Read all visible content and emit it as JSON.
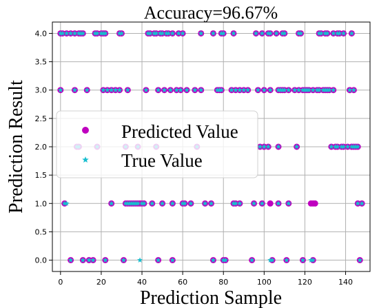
{
  "chart_data": {
    "type": "scatter",
    "title": "Accuracy=96.67%",
    "xlabel": "Prediction Sample",
    "ylabel": "Prediction Result",
    "xlim": [
      -4,
      152
    ],
    "ylim": [
      -0.2,
      4.2
    ],
    "xticks": [
      "0",
      "20",
      "40",
      "60",
      "80",
      "100",
      "120",
      "140"
    ],
    "xtick_values": [
      0,
      20,
      40,
      60,
      80,
      100,
      120,
      140
    ],
    "yticks": [
      "0.0",
      "0.5",
      "1.0",
      "1.5",
      "2.0",
      "2.5",
      "3.0",
      "3.5",
      "4.0"
    ],
    "ytick_values": [
      0,
      0.5,
      1,
      1.5,
      2,
      2.5,
      3,
      3.5,
      4
    ],
    "grid": true,
    "legend_position": "center-left",
    "colors": {
      "predicted": "#bf00bf",
      "true": "#17becf",
      "grid": "#b0b0b0"
    },
    "series": [
      {
        "name": "Predicted Value",
        "marker": "circle",
        "points": [
          [
            0,
            4
          ],
          [
            1,
            4
          ],
          [
            3,
            4
          ],
          [
            5,
            4
          ],
          [
            7,
            4
          ],
          [
            9,
            4
          ],
          [
            10,
            4
          ],
          [
            11,
            4
          ],
          [
            17,
            4
          ],
          [
            18,
            4
          ],
          [
            20,
            4
          ],
          [
            21,
            4
          ],
          [
            22,
            4
          ],
          [
            29,
            4
          ],
          [
            30,
            4
          ],
          [
            43,
            4
          ],
          [
            44,
            4
          ],
          [
            46,
            4
          ],
          [
            47,
            4
          ],
          [
            49,
            4
          ],
          [
            50,
            4
          ],
          [
            52,
            4
          ],
          [
            53,
            4
          ],
          [
            55,
            4
          ],
          [
            58,
            4
          ],
          [
            60,
            4
          ],
          [
            69,
            4
          ],
          [
            75,
            4
          ],
          [
            79,
            4
          ],
          [
            80,
            4
          ],
          [
            85,
            4
          ],
          [
            96,
            4
          ],
          [
            99,
            4
          ],
          [
            102,
            4
          ],
          [
            103,
            4
          ],
          [
            106,
            4
          ],
          [
            109,
            4
          ],
          [
            110,
            4
          ],
          [
            117,
            4
          ],
          [
            118,
            4
          ],
          [
            127,
            4
          ],
          [
            128,
            4
          ],
          [
            130,
            4
          ],
          [
            131,
            4
          ],
          [
            134,
            4
          ],
          [
            136,
            4
          ],
          [
            137,
            4
          ],
          [
            139,
            4
          ],
          [
            143,
            4
          ],
          [
            0,
            3
          ],
          [
            7,
            3
          ],
          [
            13,
            3
          ],
          [
            21,
            3
          ],
          [
            23,
            3
          ],
          [
            25,
            3
          ],
          [
            27,
            3
          ],
          [
            29,
            3
          ],
          [
            33,
            3
          ],
          [
            42,
            3
          ],
          [
            48,
            3
          ],
          [
            51,
            3
          ],
          [
            54,
            3
          ],
          [
            57,
            3
          ],
          [
            59,
            3
          ],
          [
            62,
            3
          ],
          [
            66,
            3
          ],
          [
            69,
            3
          ],
          [
            77,
            3
          ],
          [
            78,
            3
          ],
          [
            79,
            3
          ],
          [
            84,
            3
          ],
          [
            86,
            3
          ],
          [
            88,
            3
          ],
          [
            90,
            3
          ],
          [
            92,
            3
          ],
          [
            97,
            3
          ],
          [
            100,
            3
          ],
          [
            103,
            3
          ],
          [
            107,
            3
          ],
          [
            108,
            3
          ],
          [
            109,
            3
          ],
          [
            110,
            3
          ],
          [
            112,
            3
          ],
          [
            115,
            3
          ],
          [
            117,
            3
          ],
          [
            119,
            3
          ],
          [
            120,
            3
          ],
          [
            121,
            3
          ],
          [
            122,
            3
          ],
          [
            124,
            3
          ],
          [
            126,
            3
          ],
          [
            127,
            3
          ],
          [
            129,
            3
          ],
          [
            130,
            3
          ],
          [
            131,
            3
          ],
          [
            132,
            3
          ],
          [
            134,
            3
          ],
          [
            142,
            3
          ],
          [
            144,
            3
          ],
          [
            8,
            2
          ],
          [
            9,
            2
          ],
          [
            18,
            2
          ],
          [
            32,
            2
          ],
          [
            38,
            2
          ],
          [
            47,
            2
          ],
          [
            67,
            2
          ],
          [
            98,
            2
          ],
          [
            100,
            2
          ],
          [
            102,
            2
          ],
          [
            107,
            2
          ],
          [
            116,
            2
          ],
          [
            133,
            2
          ],
          [
            135,
            2
          ],
          [
            136,
            2
          ],
          [
            138,
            2
          ],
          [
            139,
            2
          ],
          [
            141,
            2
          ],
          [
            143,
            2
          ],
          [
            144,
            2
          ],
          [
            145,
            2
          ],
          [
            146,
            2
          ],
          [
            2,
            1
          ],
          [
            25,
            1
          ],
          [
            32,
            1
          ],
          [
            33,
            1
          ],
          [
            34,
            1
          ],
          [
            35,
            1
          ],
          [
            36,
            1
          ],
          [
            37,
            1
          ],
          [
            38,
            1
          ],
          [
            39,
            1
          ],
          [
            40,
            1
          ],
          [
            41,
            1
          ],
          [
            45,
            1
          ],
          [
            50,
            1
          ],
          [
            55,
            1
          ],
          [
            60,
            1
          ],
          [
            61,
            1
          ],
          [
            64,
            1
          ],
          [
            71,
            1
          ],
          [
            74,
            1
          ],
          [
            85,
            1
          ],
          [
            86,
            1
          ],
          [
            88,
            1
          ],
          [
            95,
            1
          ],
          [
            99,
            1
          ],
          [
            103,
            1
          ],
          [
            107,
            1
          ],
          [
            112,
            1
          ],
          [
            123,
            1
          ],
          [
            124,
            1
          ],
          [
            125,
            1
          ],
          [
            146,
            1
          ],
          [
            148,
            1
          ],
          [
            5,
            0
          ],
          [
            11,
            0
          ],
          [
            14,
            0
          ],
          [
            16,
            0
          ],
          [
            22,
            0
          ],
          [
            31,
            0
          ],
          [
            48,
            0
          ],
          [
            55,
            0
          ],
          [
            75,
            0
          ],
          [
            80,
            0
          ],
          [
            81,
            0
          ],
          [
            94,
            0
          ],
          [
            104,
            0
          ],
          [
            111,
            0
          ],
          [
            119,
            0
          ],
          [
            124,
            0
          ],
          [
            147,
            0
          ]
        ]
      },
      {
        "name": "True Value",
        "marker": "star",
        "points": [
          [
            0,
            4
          ],
          [
            1,
            4
          ],
          [
            3,
            4
          ],
          [
            5,
            4
          ],
          [
            7,
            4
          ],
          [
            9,
            4
          ],
          [
            10,
            4
          ],
          [
            11,
            4
          ],
          [
            17,
            4
          ],
          [
            18,
            4
          ],
          [
            20,
            4
          ],
          [
            21,
            4
          ],
          [
            22,
            4
          ],
          [
            29,
            4
          ],
          [
            30,
            4
          ],
          [
            43,
            4
          ],
          [
            44,
            4
          ],
          [
            46,
            4
          ],
          [
            47,
            4
          ],
          [
            49,
            4
          ],
          [
            50,
            4
          ],
          [
            52,
            4
          ],
          [
            53,
            4
          ],
          [
            55,
            4
          ],
          [
            58,
            4
          ],
          [
            60,
            4
          ],
          [
            69,
            4
          ],
          [
            75,
            4
          ],
          [
            79,
            4
          ],
          [
            80,
            4
          ],
          [
            85,
            4
          ],
          [
            96,
            4
          ],
          [
            99,
            4
          ],
          [
            102,
            4
          ],
          [
            103,
            4
          ],
          [
            106,
            4
          ],
          [
            109,
            4
          ],
          [
            110,
            4
          ],
          [
            117,
            4
          ],
          [
            118,
            4
          ],
          [
            127,
            4
          ],
          [
            128,
            4
          ],
          [
            130,
            4
          ],
          [
            131,
            4
          ],
          [
            134,
            4
          ],
          [
            136,
            4
          ],
          [
            137,
            4
          ],
          [
            139,
            4
          ],
          [
            143,
            4
          ],
          [
            0,
            3
          ],
          [
            7,
            3
          ],
          [
            13,
            3
          ],
          [
            21,
            3
          ],
          [
            23,
            3
          ],
          [
            25,
            3
          ],
          [
            27,
            3
          ],
          [
            29,
            3
          ],
          [
            33,
            3
          ],
          [
            42,
            3
          ],
          [
            48,
            3
          ],
          [
            51,
            3
          ],
          [
            54,
            3
          ],
          [
            57,
            3
          ],
          [
            59,
            3
          ],
          [
            62,
            3
          ],
          [
            66,
            3
          ],
          [
            69,
            3
          ],
          [
            77,
            3
          ],
          [
            78,
            3
          ],
          [
            79,
            3
          ],
          [
            84,
            3
          ],
          [
            86,
            3
          ],
          [
            88,
            3
          ],
          [
            90,
            3
          ],
          [
            92,
            3
          ],
          [
            97,
            3
          ],
          [
            100,
            3
          ],
          [
            103,
            3
          ],
          [
            107,
            3
          ],
          [
            108,
            3
          ],
          [
            109,
            3
          ],
          [
            110,
            3
          ],
          [
            112,
            3
          ],
          [
            115,
            3
          ],
          [
            117,
            3
          ],
          [
            119,
            3
          ],
          [
            120,
            3
          ],
          [
            121,
            3
          ],
          [
            122,
            3
          ],
          [
            124,
            3
          ],
          [
            126,
            3
          ],
          [
            127,
            3
          ],
          [
            129,
            3
          ],
          [
            130,
            3
          ],
          [
            131,
            3
          ],
          [
            132,
            3
          ],
          [
            134,
            3
          ],
          [
            142,
            3
          ],
          [
            144,
            3
          ],
          [
            8,
            2
          ],
          [
            9,
            2
          ],
          [
            18,
            2
          ],
          [
            32,
            2
          ],
          [
            38,
            2
          ],
          [
            47,
            2
          ],
          [
            67,
            2
          ],
          [
            98,
            2
          ],
          [
            100,
            2
          ],
          [
            102,
            2
          ],
          [
            107,
            2
          ],
          [
            116,
            2
          ],
          [
            133,
            2
          ],
          [
            135,
            2
          ],
          [
            136,
            2
          ],
          [
            138,
            2
          ],
          [
            139,
            2
          ],
          [
            141,
            2
          ],
          [
            143,
            2
          ],
          [
            144,
            2
          ],
          [
            145,
            2
          ],
          [
            146,
            2
          ],
          [
            2,
            1
          ],
          [
            3,
            1
          ],
          [
            25,
            1
          ],
          [
            32,
            1
          ],
          [
            33,
            1
          ],
          [
            34,
            1
          ],
          [
            35,
            1
          ],
          [
            36,
            1
          ],
          [
            37,
            1
          ],
          [
            38,
            1
          ],
          [
            40,
            1
          ],
          [
            41,
            1
          ],
          [
            45,
            1
          ],
          [
            50,
            1
          ],
          [
            55,
            1
          ],
          [
            60,
            1
          ],
          [
            61,
            1
          ],
          [
            64,
            1
          ],
          [
            71,
            1
          ],
          [
            74,
            1
          ],
          [
            85,
            1
          ],
          [
            86,
            1
          ],
          [
            88,
            1
          ],
          [
            95,
            1
          ],
          [
            99,
            1
          ],
          [
            107,
            1
          ],
          [
            112,
            1
          ],
          [
            146,
            1
          ],
          [
            148,
            1
          ],
          [
            5,
            0
          ],
          [
            11,
            0
          ],
          [
            14,
            0
          ],
          [
            16,
            0
          ],
          [
            22,
            0
          ],
          [
            31,
            0
          ],
          [
            39,
            0
          ],
          [
            48,
            0
          ],
          [
            55,
            0
          ],
          [
            75,
            0
          ],
          [
            80,
            0
          ],
          [
            81,
            0
          ],
          [
            94,
            0
          ],
          [
            103,
            0
          ],
          [
            104,
            0
          ],
          [
            111,
            0
          ],
          [
            119,
            0
          ],
          [
            123,
            0
          ],
          [
            124,
            0
          ],
          [
            147,
            0
          ]
        ]
      }
    ]
  }
}
